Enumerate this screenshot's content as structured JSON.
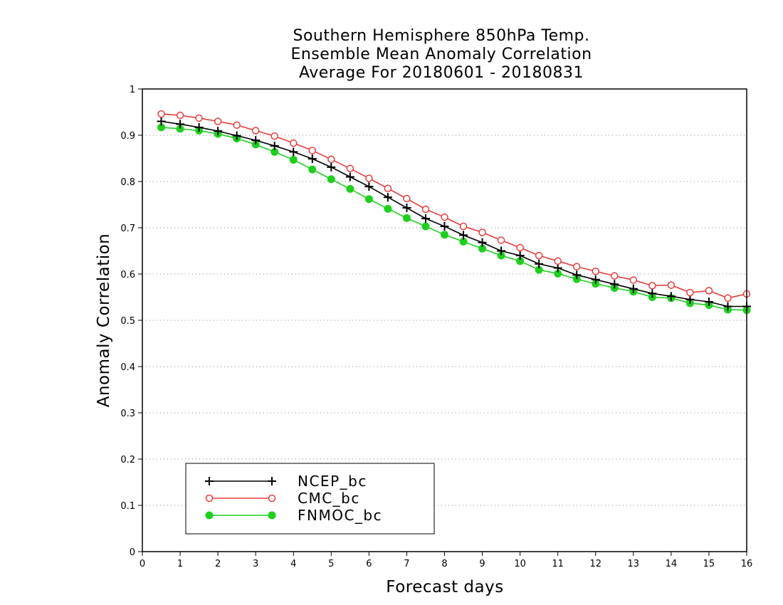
{
  "chart_data": {
    "type": "line",
    "title": [
      "Southern Hemisphere 850hPa Temp.",
      "Ensemble Mean Anomaly Correlation",
      "Average For 20180601 - 20180831"
    ],
    "xlabel": "Forecast days",
    "ylabel": "Anomaly Correlation",
    "xlim": [
      0,
      16
    ],
    "ylim": [
      0,
      1
    ],
    "xticks": [
      "0",
      "1",
      "2",
      "3",
      "4",
      "5",
      "6",
      "7",
      "8",
      "9",
      "10",
      "11",
      "12",
      "13",
      "14",
      "15",
      "16"
    ],
    "yticks": [
      "0",
      "0.1",
      "0.2",
      "0.3",
      "0.4",
      "0.5",
      "0.6",
      "0.7",
      "0.8",
      "0.9",
      "1"
    ],
    "grid": "horizontal dotted",
    "legend_position": "bottom-left",
    "x": [
      0.5,
      1,
      1.5,
      2,
      2.5,
      3,
      3.5,
      4,
      4.5,
      5,
      5.5,
      6,
      6.5,
      7,
      7.5,
      8,
      8.5,
      9,
      9.5,
      10,
      10.5,
      11,
      11.5,
      12,
      12.5,
      13,
      13.5,
      14,
      14.5,
      15,
      15.5,
      16
    ],
    "series": [
      {
        "name": "NCEP_bc",
        "color": "#000000",
        "marker": "plus",
        "values": [
          0.93,
          0.924,
          0.917,
          0.909,
          0.899,
          0.889,
          0.877,
          0.864,
          0.849,
          0.831,
          0.81,
          0.789,
          0.766,
          0.743,
          0.72,
          0.703,
          0.684,
          0.668,
          0.65,
          0.64,
          0.622,
          0.613,
          0.598,
          0.588,
          0.578,
          0.568,
          0.558,
          0.552,
          0.545,
          0.54,
          0.53,
          0.53
        ]
      },
      {
        "name": "CMC_bc",
        "color": "#e83c3c",
        "marker": "open-circle",
        "values": [
          0.946,
          0.943,
          0.937,
          0.93,
          0.922,
          0.91,
          0.898,
          0.883,
          0.867,
          0.848,
          0.828,
          0.807,
          0.785,
          0.763,
          0.74,
          0.723,
          0.703,
          0.69,
          0.673,
          0.657,
          0.64,
          0.628,
          0.616,
          0.606,
          0.596,
          0.587,
          0.575,
          0.576,
          0.56,
          0.564,
          0.548,
          0.557
        ]
      },
      {
        "name": "FNMOC_bc",
        "color": "#1ed01e",
        "marker": "filled-circle",
        "values": [
          0.917,
          0.914,
          0.91,
          0.903,
          0.893,
          0.88,
          0.864,
          0.847,
          0.826,
          0.805,
          0.784,
          0.762,
          0.741,
          0.721,
          0.703,
          0.685,
          0.67,
          0.655,
          0.64,
          0.628,
          0.609,
          0.601,
          0.589,
          0.579,
          0.57,
          0.562,
          0.55,
          0.548,
          0.537,
          0.533,
          0.523,
          0.522
        ]
      }
    ]
  }
}
